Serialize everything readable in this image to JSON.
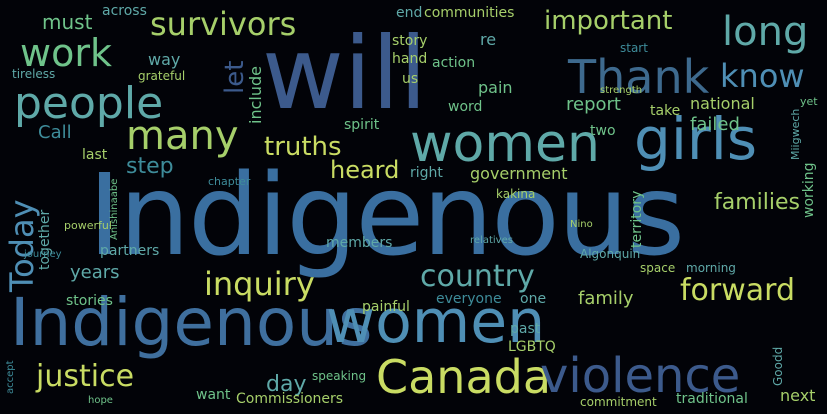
{
  "colors": {
    "background": "#020308",
    "palette": [
      "#3a6fa0",
      "#4f8fb5",
      "#5fa9a8",
      "#6fc38a",
      "#a6cf6a",
      "#c9dc63",
      "#3c5a8c",
      "#3e8c9a"
    ]
  },
  "words": [
    "Indigenous",
    "Indigenous",
    "women",
    "will",
    "girls",
    "women",
    "Canada",
    "violence",
    "people",
    "many",
    "Thank",
    "know",
    "long",
    "work",
    "survivors",
    "important",
    "inquiry",
    "country",
    "forward",
    "justice",
    "Today",
    "truths",
    "heard",
    "families",
    "report",
    "national",
    "years",
    "family",
    "day",
    "step",
    "let",
    "must",
    "across",
    "include",
    "Call",
    "last",
    "story",
    "action",
    "end",
    "communities",
    "re",
    "pain",
    "hand",
    "word",
    "us",
    "way",
    "spirit",
    "two",
    "take",
    "failed",
    "right",
    "government",
    "members",
    "together",
    "partners",
    "stories",
    "everyone",
    "painful",
    "past",
    "LGBTQ",
    "one",
    "next",
    "want",
    "Commissioners",
    "traditional",
    "commitment",
    "start",
    "territory",
    "Algonquin",
    "space",
    "morning",
    "speaking",
    "grateful",
    "tireless",
    "working",
    "kakina",
    "chapter",
    "Miigwech",
    "Anishinaabe",
    "powerful",
    "journey",
    "yet",
    "Goodd",
    "Nino",
    "hope",
    "relatives",
    "strength",
    "accept"
  ]
}
